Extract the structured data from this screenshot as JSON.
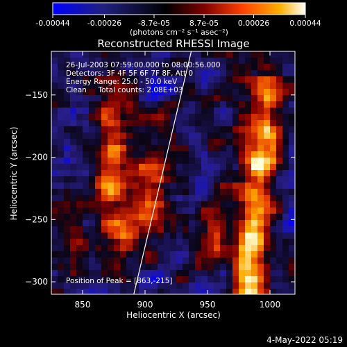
{
  "chart_data": {
    "type": "heatmap",
    "title": "Reconstructed RHESSI Image",
    "xlabel": "Heliocentric X (arcsec)",
    "ylabel": "Heliocentric Y (arcsec)",
    "xlim": [
      825,
      1020
    ],
    "ylim": [
      -310,
      -115
    ],
    "x_ticks": [
      850,
      900,
      950,
      1000
    ],
    "y_ticks": [
      -150,
      -200,
      -250,
      -300
    ],
    "x_tick_labels": [
      "850",
      "900",
      "950",
      "1000"
    ],
    "y_tick_labels": [
      "-150",
      "-200",
      "-250",
      "-300"
    ],
    "colorbar": {
      "range": [
        -0.00044,
        0.00044
      ],
      "ticks": [
        -0.00044,
        -0.00026,
        -8.7e-05,
        8.7e-05,
        0.00026,
        0.00044
      ],
      "tick_labels": [
        "-0.00044",
        "-0.00026",
        "-8.7e-05",
        "8.7e-05",
        "0.00026",
        "0.00044"
      ],
      "unit": "(photons cm⁻² s⁻¹ asec⁻²)",
      "colormap": [
        "#0000ff",
        "#202080",
        "#000000",
        "#800000",
        "#ff4000",
        "#ffb000",
        "#ffffff"
      ]
    },
    "annotations": [
      "26-Jul-2003 07:59:00.000 to 08:00:56.000",
      "Detectors: 3F 4F 5F 6F 7F 8F, Att 0",
      "Energy Range: 25.0 - 50.0 keV",
      "Clean     Total counts: 2.08E+03"
    ],
    "peak_label": "Position of Peak = [863,-215]",
    "peak": [
      863,
      -215
    ],
    "limb_line": [
      [
        891,
        -310
      ],
      [
        937,
        -115
      ]
    ],
    "grid": false
  },
  "timestamp": "4-May-2022 05:19"
}
